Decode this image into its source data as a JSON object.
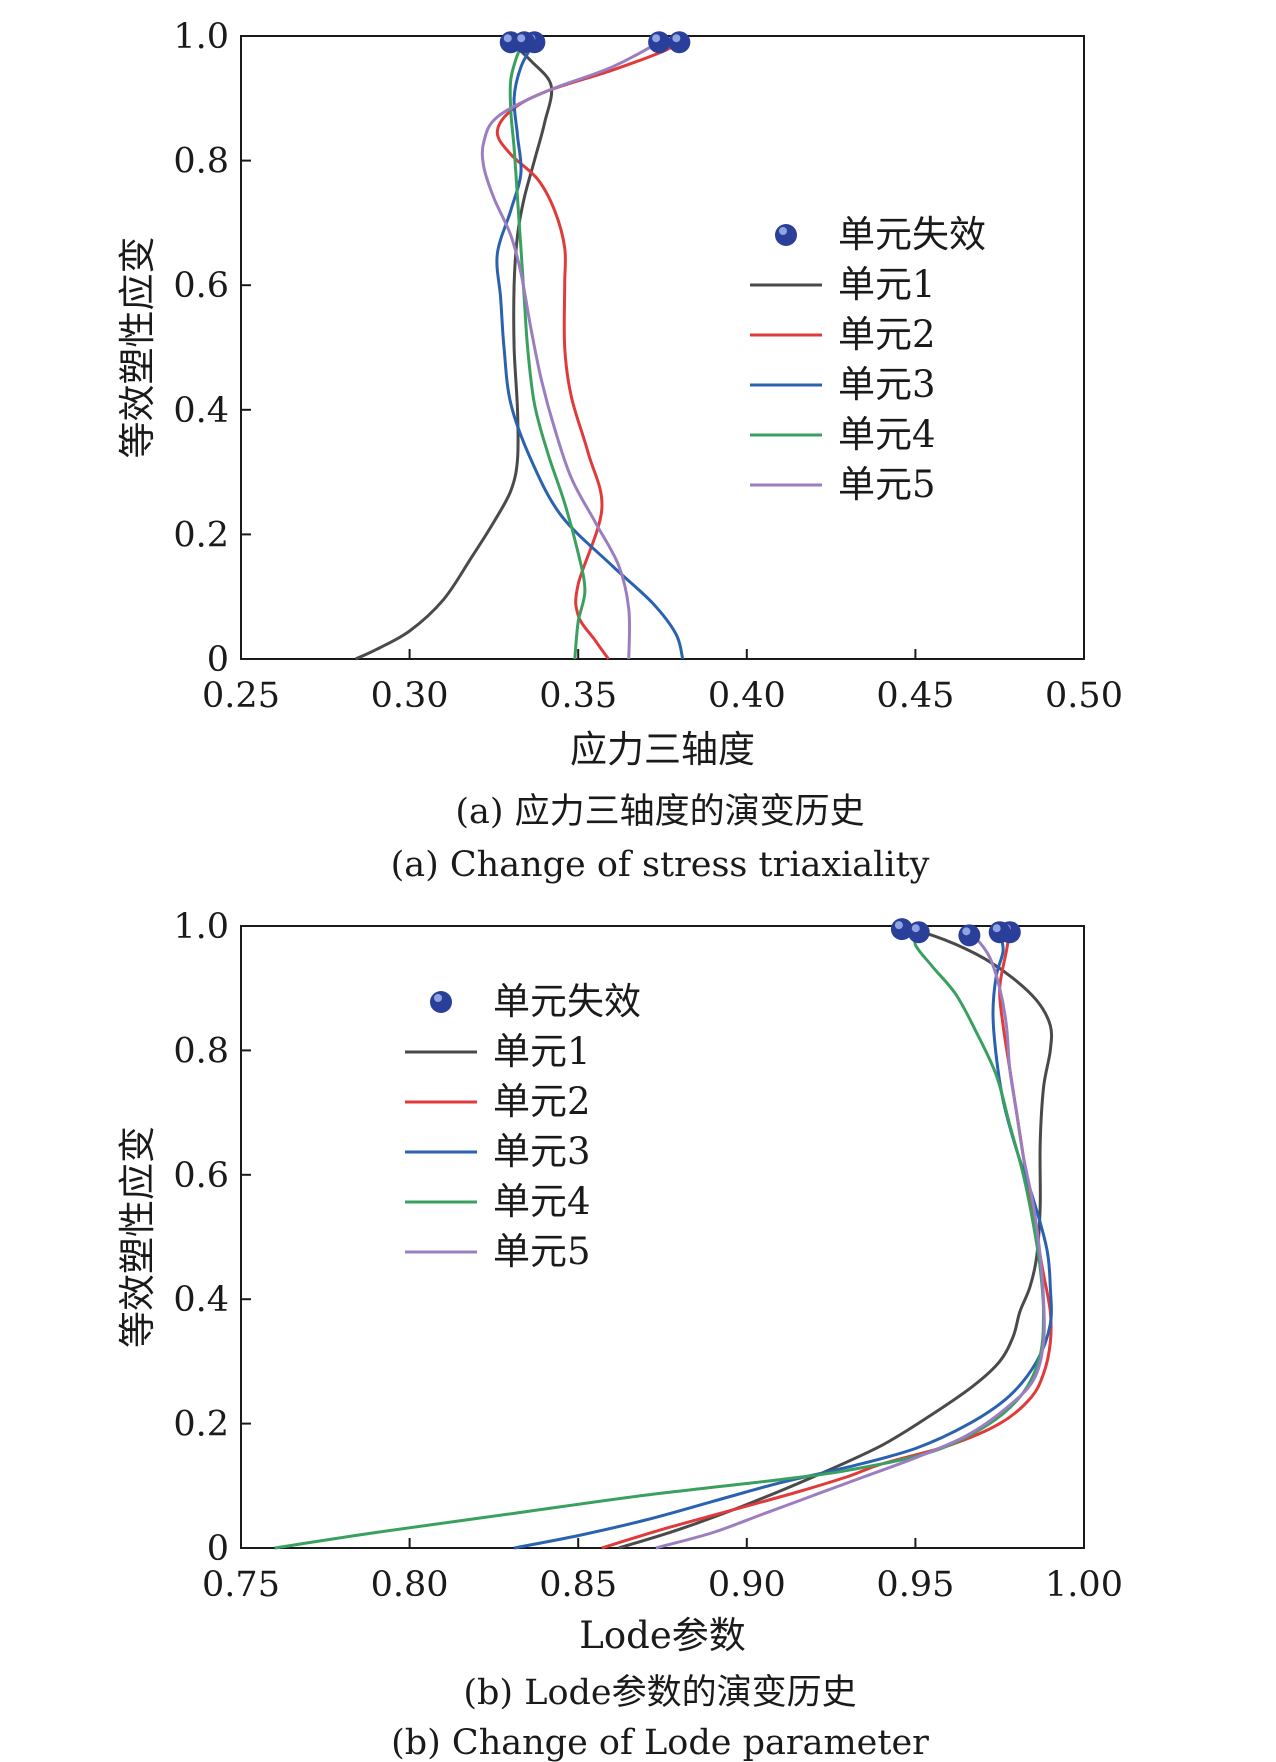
{
  "chart_data": [
    {
      "type": "line",
      "xlabel": "应力三轴度",
      "ylabel": "等效塑性应变",
      "caption_cn": "(a) 应力三轴度的演变历史",
      "caption_en": "(a) Change of stress triaxiality",
      "xlim": [
        0.25,
        0.5
      ],
      "ylim": [
        0,
        1.0
      ],
      "xticks": [
        "0.25",
        "0.30",
        "0.35",
        "0.40",
        "0.45",
        "0.50"
      ],
      "yticks": [
        "0",
        "0.2",
        "0.4",
        "0.6",
        "0.8",
        "1.0"
      ],
      "grid": false,
      "legend_position": "center-right",
      "failure_label": "单元失效",
      "failure_color": "#2a3f9a",
      "series": [
        {
          "name": "单元1",
          "color": "#4a4a4a",
          "points": [
            [
              0.284,
              0
            ],
            [
              0.29,
              0.015
            ],
            [
              0.3,
              0.045
            ],
            [
              0.31,
              0.095
            ],
            [
              0.318,
              0.16
            ],
            [
              0.325,
              0.22
            ],
            [
              0.33,
              0.27
            ],
            [
              0.332,
              0.32
            ],
            [
              0.332,
              0.4
            ],
            [
              0.331,
              0.5
            ],
            [
              0.331,
              0.6
            ],
            [
              0.332,
              0.68
            ],
            [
              0.334,
              0.74
            ],
            [
              0.337,
              0.8
            ],
            [
              0.34,
              0.86
            ],
            [
              0.342,
              0.92
            ],
            [
              0.336,
              0.96
            ],
            [
              0.33,
              0.99
            ]
          ],
          "failure": [
            0.33,
            0.99
          ]
        },
        {
          "name": "单元2",
          "color": "#e03a3a",
          "points": [
            [
              0.359,
              0
            ],
            [
              0.355,
              0.03
            ],
            [
              0.35,
              0.07
            ],
            [
              0.35,
              0.12
            ],
            [
              0.357,
              0.24
            ],
            [
              0.353,
              0.33
            ],
            [
              0.348,
              0.42
            ],
            [
              0.346,
              0.5
            ],
            [
              0.346,
              0.6
            ],
            [
              0.346,
              0.66
            ],
            [
              0.343,
              0.72
            ],
            [
              0.338,
              0.77
            ],
            [
              0.33,
              0.81
            ],
            [
              0.326,
              0.845
            ],
            [
              0.33,
              0.88
            ],
            [
              0.34,
              0.91
            ],
            [
              0.36,
              0.945
            ],
            [
              0.375,
              0.975
            ],
            [
              0.38,
              0.99
            ]
          ],
          "failure": [
            0.38,
            0.99
          ]
        },
        {
          "name": "单元3",
          "color": "#2a62b0",
          "points": [
            [
              0.381,
              0
            ],
            [
              0.379,
              0.04
            ],
            [
              0.372,
              0.09
            ],
            [
              0.36,
              0.15
            ],
            [
              0.345,
              0.23
            ],
            [
              0.336,
              0.32
            ],
            [
              0.33,
              0.41
            ],
            [
              0.328,
              0.5
            ],
            [
              0.327,
              0.58
            ],
            [
              0.326,
              0.65
            ],
            [
              0.33,
              0.72
            ],
            [
              0.333,
              0.78
            ],
            [
              0.332,
              0.84
            ],
            [
              0.331,
              0.9
            ],
            [
              0.333,
              0.95
            ],
            [
              0.337,
              0.99
            ]
          ],
          "failure": [
            0.337,
            0.99
          ]
        },
        {
          "name": "单元4",
          "color": "#3aa060",
          "points": [
            [
              0.349,
              0
            ],
            [
              0.35,
              0.06
            ],
            [
              0.352,
              0.11
            ],
            [
              0.35,
              0.17
            ],
            [
              0.346,
              0.25
            ],
            [
              0.341,
              0.33
            ],
            [
              0.337,
              0.41
            ],
            [
              0.335,
              0.5
            ],
            [
              0.334,
              0.58
            ],
            [
              0.333,
              0.66
            ],
            [
              0.332,
              0.74
            ],
            [
              0.331,
              0.82
            ],
            [
              0.33,
              0.88
            ],
            [
              0.33,
              0.93
            ],
            [
              0.332,
              0.97
            ],
            [
              0.334,
              0.99
            ]
          ],
          "failure": [
            0.334,
            0.99
          ]
        },
        {
          "name": "单元5",
          "color": "#9a7ec0",
          "points": [
            [
              0.365,
              0
            ],
            [
              0.365,
              0.08
            ],
            [
              0.362,
              0.15
            ],
            [
              0.355,
              0.22
            ],
            [
              0.348,
              0.29
            ],
            [
              0.343,
              0.37
            ],
            [
              0.339,
              0.45
            ],
            [
              0.336,
              0.53
            ],
            [
              0.333,
              0.62
            ],
            [
              0.33,
              0.68
            ],
            [
              0.325,
              0.74
            ],
            [
              0.322,
              0.79
            ],
            [
              0.322,
              0.83
            ],
            [
              0.326,
              0.87
            ],
            [
              0.34,
              0.91
            ],
            [
              0.36,
              0.95
            ],
            [
              0.374,
              0.99
            ]
          ],
          "failure": [
            0.374,
            0.99
          ]
        }
      ]
    },
    {
      "type": "line",
      "xlabel": "Lode参数",
      "ylabel": "等效塑性应变",
      "caption_cn": "(b) Lode参数的演变历史",
      "caption_en": "(b) Change of Lode parameter",
      "xlim": [
        0.75,
        1.0
      ],
      "ylim": [
        0,
        1.0
      ],
      "xticks": [
        "0.75",
        "0.80",
        "0.85",
        "0.90",
        "0.95",
        "1.00"
      ],
      "yticks": [
        "0",
        "0.2",
        "0.4",
        "0.6",
        "0.8",
        "1.0"
      ],
      "grid": false,
      "legend_position": "top-left",
      "failure_label": "单元失效",
      "failure_color": "#2a3f9a",
      "series": [
        {
          "name": "单元1",
          "color": "#4a4a4a",
          "points": [
            [
              0.862,
              0
            ],
            [
              0.88,
              0.03
            ],
            [
              0.9,
              0.07
            ],
            [
              0.92,
              0.115
            ],
            [
              0.94,
              0.165
            ],
            [
              0.955,
              0.215
            ],
            [
              0.967,
              0.26
            ],
            [
              0.975,
              0.3
            ],
            [
              0.979,
              0.34
            ],
            [
              0.981,
              0.38
            ],
            [
              0.984,
              0.42
            ],
            [
              0.986,
              0.47
            ],
            [
              0.987,
              0.55
            ],
            [
              0.987,
              0.65
            ],
            [
              0.988,
              0.74
            ],
            [
              0.99,
              0.8
            ],
            [
              0.99,
              0.84
            ],
            [
              0.986,
              0.88
            ],
            [
              0.978,
              0.92
            ],
            [
              0.968,
              0.955
            ],
            [
              0.955,
              0.985
            ],
            [
              0.946,
              0.995
            ]
          ],
          "failure": [
            0.946,
            0.995
          ]
        },
        {
          "name": "单元2",
          "color": "#e03a3a",
          "points": [
            [
              0.857,
              0
            ],
            [
              0.875,
              0.03
            ],
            [
              0.895,
              0.06
            ],
            [
              0.915,
              0.09
            ],
            [
              0.93,
              0.115
            ],
            [
              0.94,
              0.135
            ],
            [
              0.96,
              0.165
            ],
            [
              0.975,
              0.2
            ],
            [
              0.984,
              0.24
            ],
            [
              0.988,
              0.28
            ],
            [
              0.99,
              0.33
            ],
            [
              0.99,
              0.38
            ],
            [
              0.988,
              0.44
            ],
            [
              0.986,
              0.5
            ],
            [
              0.984,
              0.56
            ],
            [
              0.982,
              0.63
            ],
            [
              0.98,
              0.7
            ],
            [
              0.978,
              0.77
            ],
            [
              0.976,
              0.84
            ],
            [
              0.975,
              0.9
            ],
            [
              0.977,
              0.96
            ],
            [
              0.978,
              0.99
            ]
          ],
          "failure": [
            0.978,
            0.99
          ]
        },
        {
          "name": "单元3",
          "color": "#2a62b0",
          "points": [
            [
              0.831,
              0
            ],
            [
              0.85,
              0.02
            ],
            [
              0.87,
              0.045
            ],
            [
              0.89,
              0.075
            ],
            [
              0.91,
              0.105
            ],
            [
              0.93,
              0.13
            ],
            [
              0.95,
              0.16
            ],
            [
              0.966,
              0.2
            ],
            [
              0.978,
              0.245
            ],
            [
              0.986,
              0.3
            ],
            [
              0.99,
              0.36
            ],
            [
              0.99,
              0.42
            ],
            [
              0.989,
              0.48
            ],
            [
              0.985,
              0.56
            ],
            [
              0.98,
              0.64
            ],
            [
              0.976,
              0.72
            ],
            [
              0.974,
              0.79
            ],
            [
              0.973,
              0.86
            ],
            [
              0.974,
              0.92
            ],
            [
              0.976,
              0.96
            ],
            [
              0.975,
              0.99
            ]
          ],
          "failure": [
            0.975,
            0.99
          ]
        },
        {
          "name": "单元4",
          "color": "#3aa060",
          "points": [
            [
              0.76,
              0
            ],
            [
              0.79,
              0.025
            ],
            [
              0.83,
              0.055
            ],
            [
              0.87,
              0.085
            ],
            [
              0.91,
              0.11
            ],
            [
              0.93,
              0.125
            ],
            [
              0.955,
              0.155
            ],
            [
              0.972,
              0.2
            ],
            [
              0.982,
              0.25
            ],
            [
              0.987,
              0.31
            ],
            [
              0.988,
              0.38
            ],
            [
              0.987,
              0.45
            ],
            [
              0.985,
              0.52
            ],
            [
              0.982,
              0.6
            ],
            [
              0.978,
              0.68
            ],
            [
              0.974,
              0.76
            ],
            [
              0.968,
              0.83
            ],
            [
              0.962,
              0.89
            ],
            [
              0.955,
              0.935
            ],
            [
              0.95,
              0.97
            ],
            [
              0.951,
              0.99
            ]
          ],
          "failure": [
            0.951,
            0.99
          ]
        },
        {
          "name": "单元5",
          "color": "#9a7ec0",
          "points": [
            [
              0.873,
              0
            ],
            [
              0.89,
              0.025
            ],
            [
              0.905,
              0.055
            ],
            [
              0.92,
              0.085
            ],
            [
              0.935,
              0.115
            ],
            [
              0.95,
              0.145
            ],
            [
              0.965,
              0.18
            ],
            [
              0.977,
              0.225
            ],
            [
              0.985,
              0.27
            ],
            [
              0.988,
              0.33
            ],
            [
              0.988,
              0.4
            ],
            [
              0.987,
              0.47
            ],
            [
              0.985,
              0.55
            ],
            [
              0.982,
              0.63
            ],
            [
              0.98,
              0.7
            ],
            [
              0.978,
              0.77
            ],
            [
              0.977,
              0.84
            ],
            [
              0.975,
              0.9
            ],
            [
              0.972,
              0.95
            ],
            [
              0.968,
              0.98
            ],
            [
              0.966,
              0.985
            ]
          ],
          "failure": [
            0.966,
            0.985
          ]
        }
      ]
    }
  ]
}
